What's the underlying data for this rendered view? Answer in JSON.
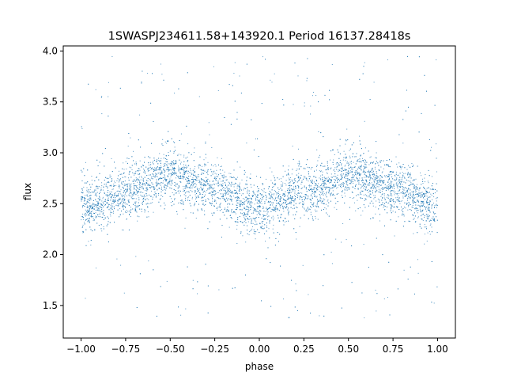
{
  "chart_data": {
    "type": "scatter",
    "title": "1SWASPJ234611.58+143920.1 Period 16137.28418s",
    "xlabel": "phase",
    "ylabel": "flux",
    "xlim": [
      -1.1,
      1.1
    ],
    "ylim": [
      1.18,
      4.05
    ],
    "x_ticks": [
      -1.0,
      -0.75,
      -0.5,
      -0.25,
      0.0,
      0.25,
      0.5,
      0.75,
      1.0
    ],
    "x_tick_labels": [
      "−1.00",
      "−0.75",
      "−0.50",
      "−0.25",
      "0.00",
      "0.25",
      "0.50",
      "0.75",
      "1.00"
    ],
    "y_ticks": [
      1.5,
      2.0,
      2.5,
      3.0,
      3.5,
      4.0
    ],
    "y_tick_labels": [
      "1.5",
      "2.0",
      "2.5",
      "3.0",
      "3.5",
      "4.0"
    ],
    "grid": false,
    "legend": "none",
    "marker_color": "#1f77b4",
    "series": [
      {
        "phase_range": [
          -1.0,
          1.0
        ],
        "mean_flux_profile": {
          "phase": [
            -1.0,
            -0.75,
            -0.5,
            -0.25,
            0.0,
            0.25,
            0.5,
            0.75,
            1.0
          ],
          "flux": [
            2.45,
            2.62,
            2.78,
            2.65,
            2.45,
            2.62,
            2.78,
            2.65,
            2.45
          ]
        },
        "core_scatter": 0.13,
        "outlier_range": [
          1.35,
          3.95
        ]
      }
    ]
  }
}
